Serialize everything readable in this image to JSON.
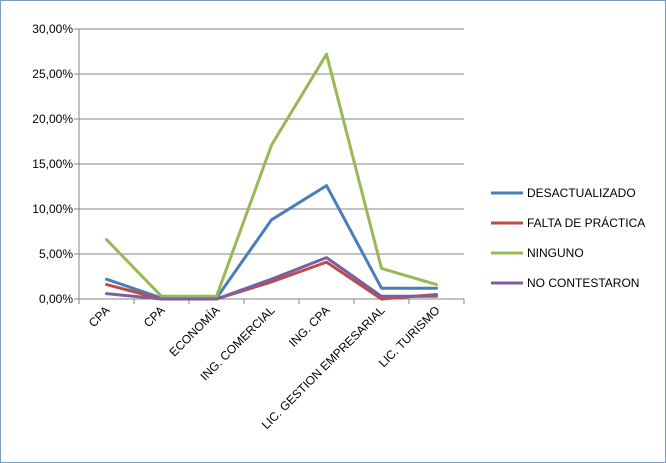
{
  "chart_data": {
    "type": "line",
    "categories": [
      "CPA",
      "CPA",
      "ECONOMÍA",
      "ING. COMERCIAL",
      "ING. CPA",
      "LIC. GESTION EMPRESARIAL",
      "LIC. TURISMO"
    ],
    "y_tick_labels": [
      "0,00%",
      "5,00%",
      "10,00%",
      "15,00%",
      "20,00%",
      "25,00%",
      "30,00%"
    ],
    "ylim": [
      0,
      30
    ],
    "y_step": 5,
    "grid": true,
    "legend_position": "right",
    "series": [
      {
        "name": "DESACTUALIZADO",
        "color": "#4a7ebb",
        "values": [
          2.2,
          0.1,
          0.1,
          8.8,
          12.6,
          1.2,
          1.2
        ]
      },
      {
        "name": "FALTA DE PRÁCTICA",
        "color": "#be4b48",
        "values": [
          1.6,
          0.0,
          0.0,
          1.9,
          4.1,
          0.0,
          0.5
        ]
      },
      {
        "name": "NINGUNO",
        "color": "#98b954",
        "values": [
          6.6,
          0.3,
          0.3,
          17.1,
          27.2,
          3.4,
          1.6
        ]
      },
      {
        "name": "NO CONTESTARON",
        "color": "#7d5fa0",
        "values": [
          0.6,
          0.0,
          0.0,
          2.2,
          4.6,
          0.3,
          0.3
        ]
      }
    ]
  }
}
